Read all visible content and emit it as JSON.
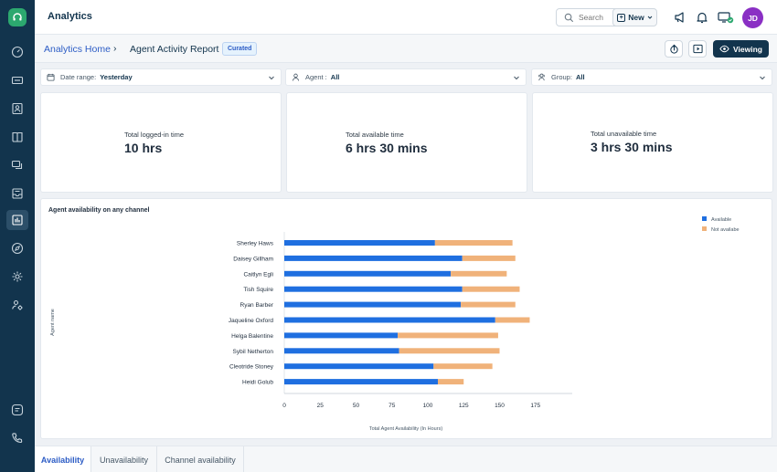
{
  "app": {
    "title": "Analytics",
    "logo_icon": "headset-icon"
  },
  "sidebar": {
    "items": [
      {
        "name": "dashboard",
        "icon": "speedometer-icon",
        "active": false
      },
      {
        "name": "tickets",
        "icon": "ticket-icon",
        "active": false
      },
      {
        "name": "contacts",
        "icon": "contact-card-icon",
        "active": false
      },
      {
        "name": "knowledge-base",
        "icon": "book-icon",
        "active": false
      },
      {
        "name": "conversations",
        "icon": "chat-icon",
        "active": false
      },
      {
        "name": "inbox",
        "icon": "inbox-icon",
        "active": false
      },
      {
        "name": "analytics",
        "icon": "bar-chart-icon",
        "active": true
      },
      {
        "name": "explore",
        "icon": "compass-icon",
        "active": false
      },
      {
        "name": "settings",
        "icon": "gear-icon",
        "active": false
      },
      {
        "name": "admin",
        "icon": "users-gear-icon",
        "active": false
      }
    ],
    "bottom_items": [
      {
        "name": "chat",
        "icon": "chat-bubble-icon"
      },
      {
        "name": "phone",
        "icon": "phone-icon"
      }
    ]
  },
  "topbar": {
    "search_placeholder": "Search",
    "new_label": "New",
    "avatar_initials": "JD"
  },
  "header": {
    "breadcrumb_home": "Analytics Home",
    "breadcrumb_separator": "›",
    "breadcrumb_current": "Agent Activity Report",
    "badge": "Curated",
    "viewing_label": "Viewing"
  },
  "filters": [
    {
      "label": "Date range:",
      "value": "Yesterday",
      "icon": "calendar-icon"
    },
    {
      "label": "Agent :",
      "value": "All",
      "icon": "person-icon"
    },
    {
      "label": "Group:",
      "value": "All",
      "icon": "group-icon"
    }
  ],
  "kpis": [
    {
      "label": "Total logged-in time",
      "value": "10 hrs"
    },
    {
      "label": "Total available time",
      "value": "6 hrs 30 mins"
    },
    {
      "label": "Total unavailable time",
      "value": "3 hrs 30 mins"
    }
  ],
  "tabs": [
    {
      "label": "Availability",
      "active": true
    },
    {
      "label": "Unavailability",
      "active": false
    },
    {
      "label": "Channel availability",
      "active": false
    }
  ],
  "colors": {
    "available": "#1f6fe0",
    "not_available": "#f0b27a",
    "accent": "#2c5cc5",
    "sidebar": "#12344d"
  },
  "chart_data": {
    "type": "bar",
    "orientation": "horizontal",
    "stacked": true,
    "title": "Agent availability on any channel",
    "xlabel": "Total Agent Availability (In Hours)",
    "ylabel": "Agent name",
    "xlim": [
      0,
      200
    ],
    "xticks": [
      0,
      25,
      50,
      75,
      100,
      125,
      150,
      175
    ],
    "legend_position": "top-right",
    "categories": [
      "Sherley Haws",
      "Daisey Gillham",
      "Caitlyn Egli",
      "Tish Squire",
      "Ryan Barber",
      "Jaqueline Oxford",
      "Helga Balentine",
      "Sybil Netherton",
      "Cleotride Stoney",
      "Heidi Golub"
    ],
    "series": [
      {
        "name": "Available",
        "values": [
          105,
          124,
          116,
          124,
          123,
          147,
          79,
          80,
          104,
          107
        ]
      },
      {
        "name": "Not availabe",
        "values": [
          54,
          37,
          39,
          40,
          38,
          24,
          70,
          70,
          41,
          18
        ]
      }
    ]
  }
}
